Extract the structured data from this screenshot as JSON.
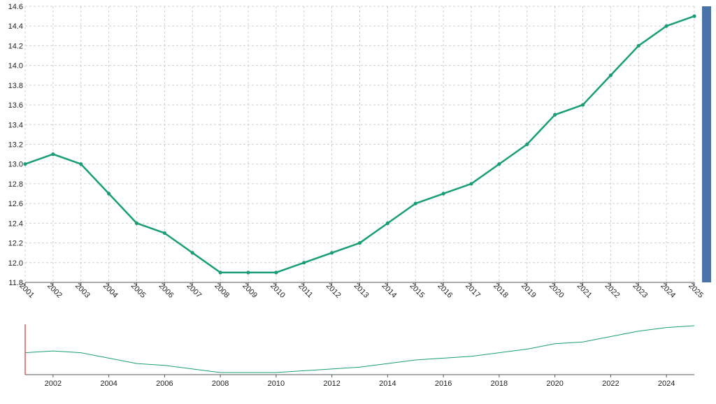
{
  "chart_data": {
    "type": "line",
    "x": [
      "2001",
      "2002",
      "2003",
      "2004",
      "2005",
      "2006",
      "2007",
      "2008",
      "2009",
      "2010",
      "2011",
      "2012",
      "2013",
      "2014",
      "2015",
      "2016",
      "2017",
      "2018",
      "2019",
      "2020",
      "2021",
      "2022",
      "2023",
      "2024",
      "2025"
    ],
    "series": [
      {
        "values": [
          13.0,
          13.1,
          13.0,
          12.7,
          12.4,
          12.3,
          12.1,
          11.9,
          11.9,
          11.9,
          12.0,
          12.1,
          12.2,
          12.4,
          12.6,
          12.7,
          12.8,
          13.0,
          13.2,
          13.5,
          13.6,
          13.9,
          14.2,
          14.4,
          14.5
        ],
        "color": "#1a9e77"
      }
    ],
    "ylim": [
      11.8,
      14.6
    ],
    "y_ticks": [
      "11.8",
      "12.0",
      "12.2",
      "12.4",
      "12.6",
      "12.8",
      "13.0",
      "13.2",
      "13.4",
      "13.6",
      "13.8",
      "14.0",
      "14.2",
      "14.4",
      "14.6"
    ],
    "grid": true,
    "navigator": {
      "tick_labels": [
        "2002",
        "2004",
        "2006",
        "2008",
        "2010",
        "2012",
        "2014",
        "2016",
        "2018",
        "2020",
        "2022",
        "2024"
      ],
      "line_color": "#1a9e77",
      "handle_color": "#e05a5a"
    },
    "scrollbar_color": "#4a74a8"
  }
}
